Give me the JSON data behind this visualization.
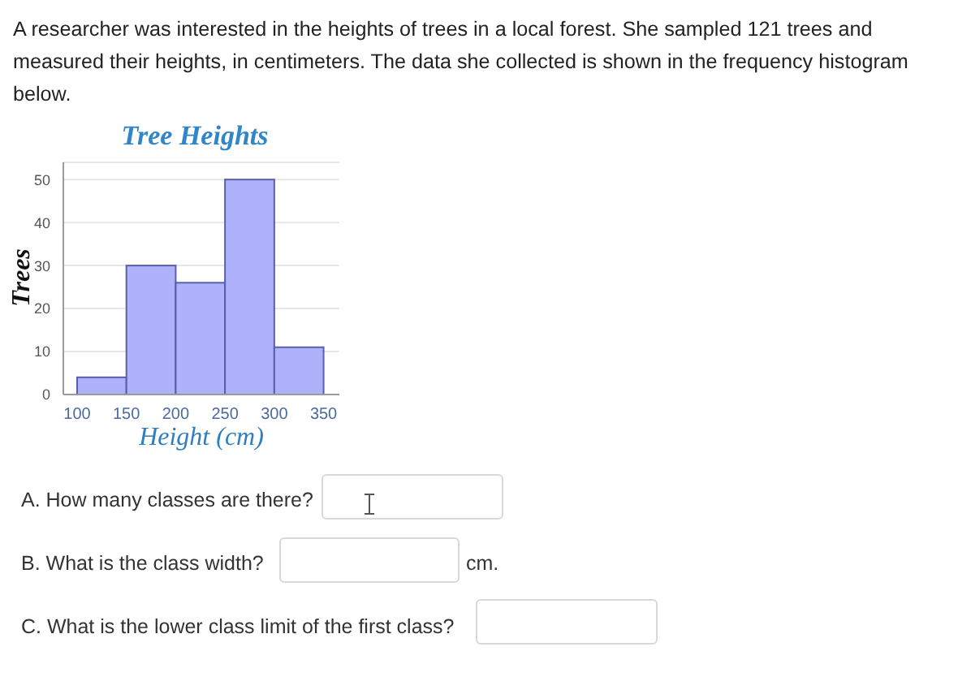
{
  "chart_data": {
    "type": "histogram",
    "title": "Tree Heights",
    "xlabel": "Height (cm)",
    "ylabel": "Trees",
    "bins": [
      100,
      150,
      200,
      250,
      300,
      350
    ],
    "values": [
      4,
      30,
      26,
      50,
      11
    ],
    "color": "#a9aefa",
    "xlim": [
      86,
      366
    ],
    "xticks": [
      100,
      150,
      200,
      250,
      300,
      350
    ],
    "ylim": [
      0,
      54
    ],
    "yticks": [
      0,
      10,
      20,
      30,
      40,
      50
    ],
    "grid": "y",
    "annotations": [
      "A researcher was interested in the heights of trees in a local forest. She sampled 121 trees and measured their heights, in centimeters. The data she collected is shown in the frequency histogram below.",
      "A. How many classes are there?",
      "B. What is the class width?",
      "cm.",
      "C. What is the lower class limit of the first class?"
    ]
  }
}
